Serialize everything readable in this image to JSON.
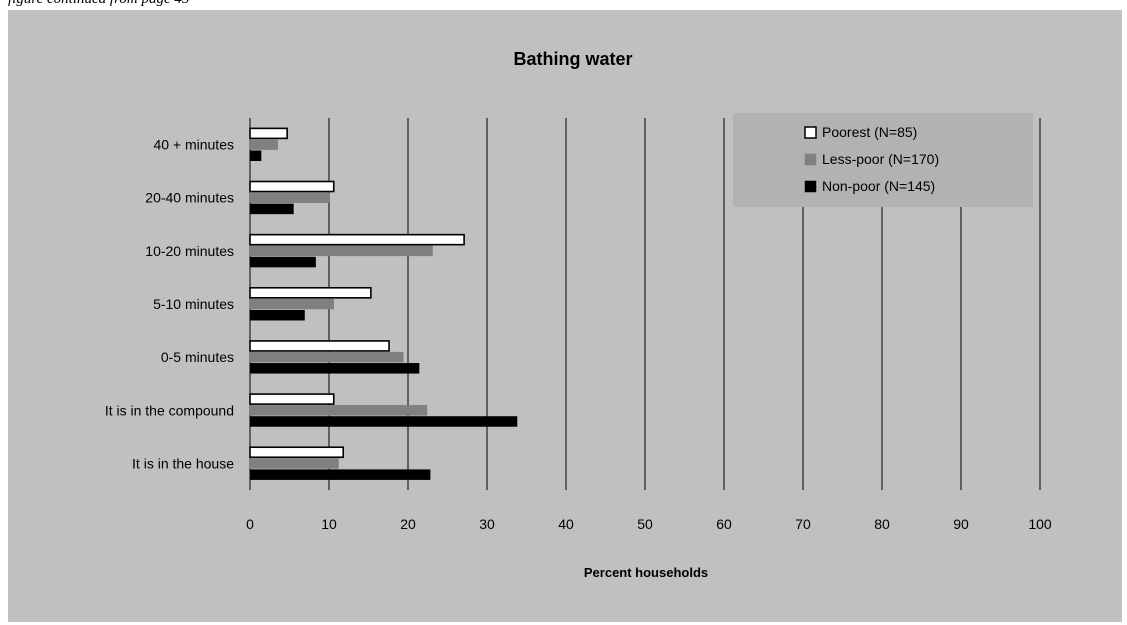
{
  "page": {
    "continued_note": "figure continued from page 45"
  },
  "chart_data": {
    "type": "bar",
    "orientation": "horizontal",
    "title": "Bathing water",
    "xlabel": "Percent households",
    "ylabel": "",
    "xlim": [
      0,
      100
    ],
    "x_ticks": [
      0,
      10,
      20,
      30,
      40,
      50,
      60,
      70,
      80,
      90,
      100
    ],
    "grid": "vertical",
    "legend_position": "top-right",
    "categories": [
      "40 + minutes",
      "20-40 minutes",
      "10-20 minutes",
      "5-10 minutes",
      "0-5 minutes",
      "It is in the compound",
      "It is in the house"
    ],
    "series": [
      {
        "name": "Poorest (N=85)",
        "fill": "#ffffff",
        "stroke": "#000000",
        "values": [
          4.7,
          10.6,
          27.1,
          15.3,
          17.6,
          10.6,
          11.8
        ]
      },
      {
        "name": "Less-poor (N=170)",
        "fill": "#808080",
        "stroke": "#808080",
        "values": [
          3.5,
          10.0,
          23.1,
          10.6,
          19.4,
          22.4,
          11.2
        ]
      },
      {
        "name": "Non-poor (N=145)",
        "fill": "#000000",
        "stroke": "#000000",
        "values": [
          1.4,
          5.5,
          8.3,
          6.9,
          21.4,
          33.8,
          22.8
        ]
      }
    ],
    "colors": {
      "panel_background": "#c0c0c0",
      "legend_background": "#b2b2b2",
      "gridline": "#000000"
    }
  }
}
